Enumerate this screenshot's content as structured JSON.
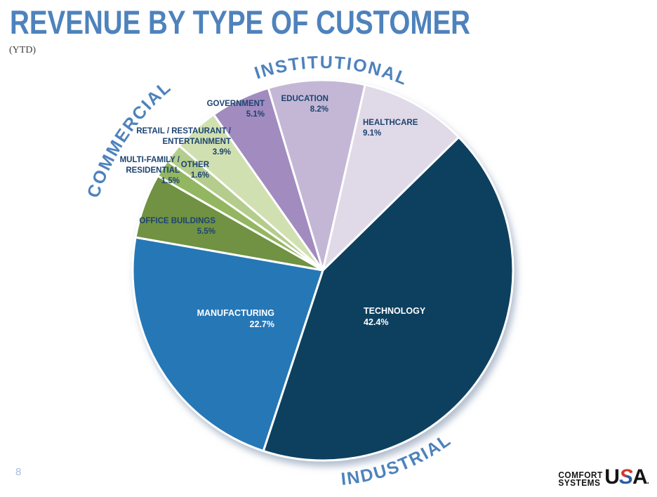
{
  "page": {
    "title": "REVENUE BY TYPE OF CUSTOMER",
    "subtitle": "(YTD)",
    "page_number": "8"
  },
  "logo": {
    "line1": "COMFORT",
    "line2": "SYSTEMS",
    "usa_u": "U",
    "usa_s": "S",
    "usa_a": "A",
    "registered_mark": "."
  },
  "chart_data": {
    "type": "pie",
    "title": "Revenue by Type of Customer (YTD)",
    "start_angle_deg": 45.6,
    "direction": "clockwise",
    "legend_position": "none",
    "groups": [
      {
        "label": "INSTITUTIONAL"
      },
      {
        "label": "COMMERCIAL"
      },
      {
        "label": "INDUSTRIAL"
      }
    ],
    "slices": [
      {
        "label": "TECHNOLOGY",
        "label_lines": [
          "TECHNOLOGY"
        ],
        "value": 42.4,
        "display": "42.4%",
        "color": "#11415f",
        "label_color": "#ffffff",
        "group": "INDUSTRIAL"
      },
      {
        "label": "MANUFACTURING",
        "label_lines": [
          "MANUFACTURING"
        ],
        "value": 22.7,
        "display": "22.7%",
        "color": "#2577b6",
        "label_color": "#ffffff",
        "group": "INDUSTRIAL"
      },
      {
        "label": "OFFICE BUILDINGS",
        "label_lines": [
          "OFFICE BUILDINGS"
        ],
        "value": 5.5,
        "display": "5.5%",
        "color": "#6f9242",
        "label_color": "#1c4370",
        "group": "COMMERCIAL"
      },
      {
        "label": "MULTI-FAMILY / RESIDENTIAL",
        "label_lines": [
          "MULTI-FAMILY /",
          "RESIDENTIAL"
        ],
        "value": 1.5,
        "display": "1.5%",
        "color": "#93b660",
        "label_color": "#1c4370",
        "group": "COMMERCIAL"
      },
      {
        "label": "OTHER",
        "label_lines": [
          "OTHER"
        ],
        "value": 1.6,
        "display": "1.6%",
        "color": "#b4cc8c",
        "label_color": "#1c4370",
        "group": "COMMERCIAL"
      },
      {
        "label": "RETAIL / RESTAURANT / ENTERTAINMENT",
        "label_lines": [
          "RETAIL / RESTAURANT /",
          "ENTERTAINMENT"
        ],
        "value": 3.9,
        "display": "3.9%",
        "color": "#d0e0b0",
        "label_color": "#1c4370",
        "group": "COMMERCIAL"
      },
      {
        "label": "GOVERNMENT",
        "label_lines": [
          "GOVERNMENT"
        ],
        "value": 5.1,
        "display": "5.1%",
        "color": "#a18bbf",
        "label_color": "#1c4370",
        "group": "INSTITUTIONAL"
      },
      {
        "label": "EDUCATION",
        "label_lines": [
          "EDUCATION"
        ],
        "value": 8.2,
        "display": "8.2%",
        "color": "#c4b7d6",
        "label_color": "#1c4370",
        "group": "INSTITUTIONAL"
      },
      {
        "label": "HEALTHCARE",
        "label_lines": [
          "HEALTHCARE"
        ],
        "value": 9.1,
        "display": "9.1%",
        "color": "#e0d9e7",
        "label_color": "#1c4370",
        "group": "INSTITUTIONAL"
      }
    ]
  }
}
